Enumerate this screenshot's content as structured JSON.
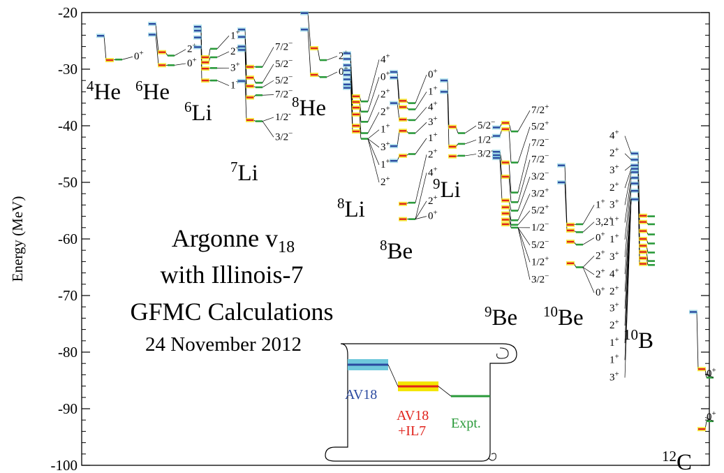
{
  "chart_data": {
    "type": "level-scheme",
    "ylabel": "Energy (MeV)",
    "ylim": [
      -100,
      -20
    ],
    "y_ticks": [
      -20,
      -30,
      -40,
      -50,
      -60,
      -70,
      -80,
      -90,
      -100
    ],
    "title_lines": [
      "Argonne v",
      "with Illinois-7",
      "GFMC Calculations",
      "24 November 2012"
    ],
    "title_sub": "18",
    "colors": {
      "av18": "#2b4aa0",
      "av18_band": "#6fc8dc",
      "il7": "#e0231c",
      "il7_band": "#f3e600",
      "expt": "#2a9a3a",
      "expt_band": "#8fd08f",
      "spec": "#b04ab8"
    },
    "legend": {
      "av18": "AV18",
      "il7_line1": "AV18",
      "il7_line2": "+IL7",
      "expt": "Expt."
    },
    "nuclei": [
      {
        "mass": "4",
        "sym": "He",
        "av18": [
          -24.1
        ],
        "il7": [
          -28.4
        ],
        "expt": [
          -28.3
        ],
        "labels": [
          {
            "text": "0",
            "sup": "+",
            "e": -28.3
          }
        ]
      },
      {
        "mass": "6",
        "sym": "He",
        "av18": [
          -22.0,
          -23.9
        ],
        "il7": [
          -27.0,
          -29.3
        ],
        "expt": [
          -27.6,
          -29.3
        ],
        "labels": [
          {
            "text": "2",
            "sup": "+",
            "e": -27.0
          },
          {
            "text": "0",
            "sup": "+",
            "e": -29.5
          }
        ]
      },
      {
        "mass": "6",
        "sym": "Li",
        "av18": [
          -22.5,
          -23.2,
          -24.4,
          -26.1
        ],
        "il7": [
          -27.9,
          -28.8,
          -29.9,
          -32.0
        ],
        "expt": [
          -26.4,
          -27.9,
          -29.8,
          -32.0
        ],
        "labels": [
          {
            "text": "1",
            "sup": "+",
            "e": -24.6
          },
          {
            "text": "2",
            "sup": "+",
            "e": -27.4
          },
          {
            "text": "3",
            "sup": "+",
            "e": -30.3
          },
          {
            "text": "1",
            "sup": "+",
            "e": -33.4
          }
        ]
      },
      {
        "mass": "7",
        "sym": "Li",
        "av18": [
          -23.0,
          -24.3,
          -26.0,
          -26.6,
          -32.1
        ],
        "il7": [
          -29.6,
          -31.5,
          -33.0,
          -35.0,
          -39.0
        ],
        "expt": [
          -29.6,
          -32.4,
          -33.2,
          -34.6,
          -39.2
        ],
        "labels": [
          {
            "text": "7/2",
            "sup": "−",
            "e": -26.6
          },
          {
            "text": "5/2",
            "sup": "−",
            "e": -29.6
          },
          {
            "text": "5/2",
            "sup": "−",
            "e": -32.5
          },
          {
            "text": "7/2",
            "sup": "−",
            "e": -35.0
          },
          {
            "text": "1/2",
            "sup": "-",
            "e": -39.0
          },
          {
            "text": "3/2",
            "sup": "−",
            "e": -42.5
          }
        ]
      },
      {
        "mass": "8",
        "sym": "He",
        "av18": [
          -20.1,
          -23.0
        ],
        "il7": [
          -26.3,
          -31.0
        ],
        "expt": [
          -28.4,
          -31.4
        ],
        "labels": [
          {
            "text": "2",
            "sup": "+",
            "e": -28.2
          },
          {
            "text": "0",
            "sup": "+",
            "e": -31.0
          }
        ]
      },
      {
        "mass": "8",
        "sym": "Li",
        "av18": [
          -27.2,
          -28.2,
          -29.3,
          -30.2,
          -31.0,
          -31.8,
          -32.7,
          -33.3
        ],
        "il7": [
          -34.8,
          -35.8,
          -36.8,
          -38.0,
          -40.0,
          -41.0
        ],
        "expt": [
          -35.7,
          -37.5,
          -39.3,
          -41.3,
          -42.3
        ],
        "labels": [
          {
            "text": "4",
            "sup": "+",
            "e": -28.8
          },
          {
            "text": "0",
            "sup": "+",
            "e": -31.9
          },
          {
            "text": "2",
            "sup": "+",
            "e": -35.0
          },
          {
            "text": "2",
            "sup": "+",
            "e": -38.1
          },
          {
            "text": "1",
            "sup": "+",
            "e": -41.2
          },
          {
            "text": "3",
            "sup": "+",
            "e": -44.3
          },
          {
            "text": "1",
            "sup": "+",
            "e": -47.4
          },
          {
            "text": "2",
            "sup": "+",
            "e": -50.5
          }
        ]
      },
      {
        "mass": "8",
        "sym": "Be",
        "av18": [
          -30.5,
          -31.5,
          -36.0,
          -43.6,
          -46.2
        ],
        "il7": [
          -35.6,
          -36.7,
          -38.9,
          -40.9,
          -45.3,
          -53.8,
          -56.5
        ],
        "expt": [
          -36.0,
          -37.1,
          -39.0,
          -41.3,
          -45.0,
          -53.6,
          -56.5
        ],
        "labels": [
          {
            "text": "0",
            "sup": "+",
            "e": -31.5
          },
          {
            "text": "1",
            "sup": "+",
            "e": -34.5
          },
          {
            "text": "4",
            "sup": "+",
            "e": -37.2
          },
          {
            "text": "3",
            "sup": "+",
            "e": -39.9
          },
          {
            "text": "1",
            "sup": "+",
            "e": -42.7
          },
          {
            "text": "2",
            "sup": "+",
            "e": -45.6
          },
          {
            "text": "4",
            "sup": "+",
            "e": -48.8
          },
          {
            "text": "2",
            "sup": "+",
            "e": -53.8
          },
          {
            "text": "0",
            "sup": "+",
            "e": -56.5
          }
        ]
      },
      {
        "mass": "9",
        "sym": "Li",
        "av18": [
          -32.0,
          -34.0
        ],
        "il7": [
          -40.2,
          -43.7,
          -45.4
        ],
        "expt": [
          -41.3,
          -43.2,
          -45.3
        ],
        "labels": [
          {
            "text": "5/2",
            "sup": "−",
            "e": -40.5
          },
          {
            "text": "1/2",
            "sup": "-",
            "e": -43.0
          },
          {
            "text": "3/2",
            "sup": "-",
            "e": -45.5
          }
        ]
      },
      {
        "mass": "9",
        "sym": "Be",
        "av18": [
          -40.3,
          -41.8,
          -44.6,
          -45.2,
          -45.7
        ],
        "il7": [
          -39.5,
          -40.6,
          -46.5,
          -49.0,
          -53.2,
          -54.4,
          -55.5,
          -56.6,
          -57.4
        ],
        "expt": [
          -41.0,
          -46.5,
          -51.8,
          -53.5,
          -55.0,
          -56.7,
          -57.5,
          -58.0
        ],
        "labels": [
          {
            "text": "7/2",
            "sup": "+",
            "e": -37.8
          },
          {
            "text": "5/2",
            "sup": "+",
            "e": -40.7
          },
          {
            "text": "7/2",
            "sup": "−",
            "e": -43.6
          },
          {
            "text": "7/2",
            "sup": "−",
            "e": -46.5
          },
          {
            "text": "3/2",
            "sup": "−",
            "e": -49.5
          },
          {
            "text": "3/2",
            "sup": "+",
            "e": -52.5
          },
          {
            "text": "5/2",
            "sup": "+",
            "e": -55.5
          },
          {
            "text": "1/2",
            "sup": "−",
            "e": -58.5
          },
          {
            "text": "5/2",
            "sup": "−",
            "e": -61.6
          },
          {
            "text": "1/2",
            "sup": "+",
            "e": -64.6
          },
          {
            "text": "3/2",
            "sup": "−",
            "e": -67.7
          }
        ]
      },
      {
        "mass": "10",
        "sym": "Be",
        "av18": [
          -47.0,
          -50.0
        ],
        "il7": [
          -57.5,
          -58.5,
          -60.5,
          -64.3
        ],
        "expt": [
          -57.4,
          -58.8,
          -61.0,
          -65.0
        ],
        "labels": [
          {
            "text": "1",
            "sup": "+",
            "e": -54.5
          },
          {
            "text": "3,2",
            "sup": "+",
            "e": -57.5
          },
          {
            "text": "0",
            "sup": "+",
            "e": -60.3
          },
          {
            "text": "2",
            "sup": "+",
            "e": -63.5
          },
          {
            "text": "2",
            "sup": "+",
            "e": -66.8
          },
          {
            "text": "0",
            "sup": "+",
            "e": -70.0
          }
        ]
      },
      {
        "mass": "10",
        "sym": "B",
        "av18": [
          -44.9,
          -46.0,
          -47.0,
          -47.6,
          -48.2,
          -49.2,
          -50.2,
          -51.5,
          -53.0
        ],
        "il7": [
          -55.9,
          -57.0,
          -58.6,
          -60.0,
          -61.2,
          -62.3,
          -63.4,
          -64.4
        ],
        "expt": [
          -56.0,
          -57.4,
          -59.2,
          -60.8,
          -62.4,
          -63.9,
          -64.6
        ],
        "labels": [
          {
            "text": "4",
            "sup": "+",
            "e": -42.3
          },
          {
            "text": "2",
            "sup": "+",
            "e": -45.4
          },
          {
            "text": "3",
            "sup": "+",
            "e": -48.4
          },
          {
            "text": "2",
            "sup": "+",
            "e": -51.5
          },
          {
            "text": "3",
            "sup": "+",
            "e": -54.5
          },
          {
            "text": "1",
            "sup": "+",
            "e": -57.6
          },
          {
            "text": "1",
            "sup": "+",
            "e": -60.6
          },
          {
            "text": "3",
            "sup": "+",
            "e": -63.7
          },
          {
            "text": "4",
            "sup": "+",
            "e": -66.7
          },
          {
            "text": "2",
            "sup": "+",
            "e": -69.8
          },
          {
            "text": "3",
            "sup": "+",
            "e": -72.8
          },
          {
            "text": "2",
            "sup": "+",
            "e": -75.8
          },
          {
            "text": "1",
            "sup": "+",
            "e": -78.9
          },
          {
            "text": "1",
            "sup": "+",
            "e": -81.9
          },
          {
            "text": "3",
            "sup": "+",
            "e": -85.0
          }
        ]
      },
      {
        "mass": "12",
        "sym": "C",
        "av18": [
          -72.9
        ],
        "il7": [
          -83.0,
          -93.6
        ],
        "expt": [
          -84.5,
          -92.2
        ],
        "labels": [
          {
            "text": "0",
            "sup": "+",
            "e": -84.3
          },
          {
            "text": "0",
            "sup": "+",
            "e": -92.0
          }
        ]
      }
    ]
  }
}
